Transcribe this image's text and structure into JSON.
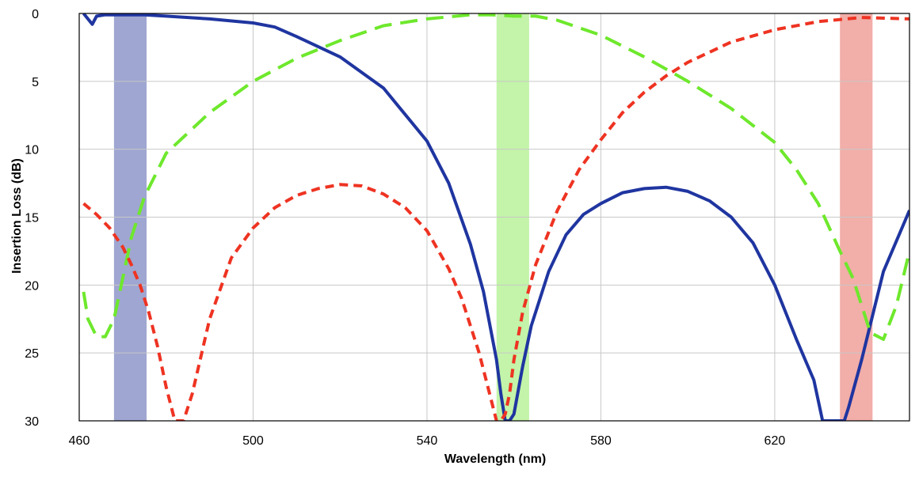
{
  "chart_data": {
    "type": "line",
    "title": "",
    "xlabel": "Wavelength (nm)",
    "ylabel": "Insertion Loss (dB)",
    "xlim": [
      460,
      651
    ],
    "ylim": [
      0,
      30
    ],
    "y_axis_inverted": true,
    "grid": true,
    "legend": "none",
    "xticks": [
      460,
      500,
      540,
      580,
      620
    ],
    "yticks": [
      0,
      5,
      10,
      15,
      20,
      25,
      30
    ],
    "bands": [
      {
        "name": "blue-band",
        "x0": 468,
        "x1": 475.5,
        "color": "#8e97c9"
      },
      {
        "name": "green-band",
        "x0": 556,
        "x1": 563.5,
        "color": "#b8f29a"
      },
      {
        "name": "red-band",
        "x0": 635,
        "x1": 642.5,
        "color": "#f0a09a"
      }
    ],
    "series": [
      {
        "color": "#1f35a0",
        "style": "solid",
        "x": [
          461,
          462,
          463,
          464,
          466,
          470,
          475,
          480,
          490,
          500,
          505,
          510,
          520,
          530,
          540,
          545,
          550,
          553,
          556,
          557,
          558,
          559,
          560,
          562,
          564,
          568,
          572,
          576,
          580,
          585,
          590,
          595,
          600,
          605,
          610,
          615,
          620,
          625,
          629,
          631,
          633,
          634,
          635,
          636,
          637,
          640,
          645,
          651
        ],
        "y": [
          0,
          0.4,
          0.8,
          0.2,
          0.1,
          0.1,
          0.1,
          0.2,
          0.4,
          0.7,
          1.0,
          1.7,
          3.2,
          5.5,
          9.4,
          12.5,
          17.0,
          20.5,
          25.5,
          28.0,
          30.0,
          30.0,
          29.5,
          26.0,
          23.0,
          19.0,
          16.3,
          14.8,
          14.0,
          13.2,
          12.9,
          12.8,
          13.1,
          13.8,
          15.0,
          16.9,
          20.0,
          24.0,
          27.0,
          30.0,
          30.0,
          30.0,
          30.0,
          30.0,
          29.0,
          25.5,
          19.0,
          14.5
        ]
      },
      {
        "color": "#6ee82c",
        "style": "dashed",
        "x": [
          461,
          462,
          464,
          466,
          468,
          470,
          472,
          475,
          480,
          490,
          500,
          510,
          520,
          530,
          540,
          550,
          555,
          560,
          565,
          570,
          580,
          590,
          600,
          610,
          620,
          625,
          630,
          635,
          638,
          640,
          642,
          645,
          648,
          651
        ],
        "y": [
          20.5,
          22.5,
          23.8,
          23.8,
          22.5,
          19.5,
          16.5,
          13.5,
          10.3,
          7.3,
          5.0,
          3.3,
          2.0,
          0.9,
          0.4,
          0.1,
          0.1,
          0.2,
          0.2,
          0.5,
          1.6,
          3.2,
          5.0,
          7.0,
          9.5,
          11.5,
          14.0,
          17.5,
          19.5,
          21.5,
          23.5,
          24.0,
          21.5,
          17.5
        ]
      },
      {
        "color": "#ee3322",
        "style": "short-dash",
        "x": [
          461,
          464,
          467,
          470,
          472,
          474,
          476,
          478,
          480,
          482,
          484,
          486,
          490,
          495,
          500,
          505,
          510,
          515,
          520,
          525,
          530,
          535,
          540,
          545,
          548,
          550,
          552,
          554,
          556,
          557,
          558,
          559,
          560,
          562,
          565,
          570,
          575,
          580,
          585,
          590,
          595,
          600,
          610,
          620,
          630,
          640,
          651
        ],
        "y": [
          14.0,
          14.8,
          15.8,
          17.2,
          18.5,
          20.0,
          22.0,
          24.5,
          27.5,
          30.0,
          30.0,
          28.0,
          22.5,
          18.0,
          15.8,
          14.3,
          13.4,
          12.9,
          12.6,
          12.7,
          13.3,
          14.3,
          16.0,
          18.8,
          21.0,
          23.0,
          25.0,
          27.5,
          30.0,
          30.0,
          29.5,
          28.0,
          25.5,
          22.0,
          18.5,
          14.5,
          11.5,
          9.3,
          7.3,
          5.8,
          4.6,
          3.6,
          2.1,
          1.2,
          0.6,
          0.3,
          0.4
        ]
      }
    ]
  }
}
